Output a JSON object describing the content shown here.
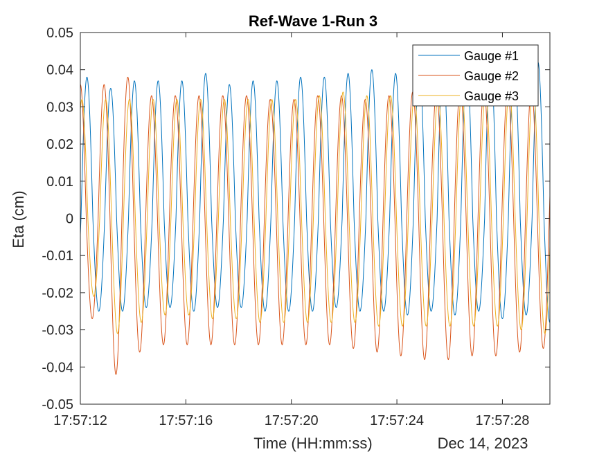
{
  "chart_data": {
    "type": "line",
    "title": "Ref-Wave 1-Run 3",
    "xlabel": "Time (HH:mm:ss)",
    "ylabel": "Eta (cm)",
    "date_label": "Dec 14, 2023",
    "x_start": "17:57:12",
    "x_end": "17:57:30",
    "x_unit": "s",
    "xlim": [
      0,
      17.8
    ],
    "ylim": [
      -0.05,
      0.05
    ],
    "x_ticks": [
      0,
      4,
      8,
      12,
      16
    ],
    "x_tick_labels": [
      "17:57:12",
      "17:57:16",
      "17:57:20",
      "17:57:24",
      "17:57:28"
    ],
    "y_ticks": [
      -0.05,
      -0.04,
      -0.03,
      -0.02,
      -0.01,
      0,
      0.01,
      0.02,
      0.03,
      0.04,
      0.05
    ],
    "y_tick_labels": [
      "-0.05",
      "-0.04",
      "-0.03",
      "-0.02",
      "-0.01",
      "0",
      "0.01",
      "0.02",
      "0.03",
      "0.04",
      "0.05"
    ],
    "grid": false,
    "legend_position": "top-right",
    "series": [
      {
        "name": "Gauge #1",
        "color": "#0072BD",
        "period": 0.9,
        "phase": 0.25,
        "peaks": [
          0.038,
          0.035,
          0.037,
          0.037,
          0.037,
          0.039,
          0.036,
          0.037,
          0.037,
          0.038,
          0.038,
          0.039,
          0.04,
          0.039,
          0.041,
          0.042,
          0.042,
          0.044,
          0.042,
          0.042,
          0.043,
          0.044,
          0.044,
          0.045,
          0.046,
          0.047
        ],
        "troughs": [
          -0.025,
          -0.025,
          -0.024,
          -0.024,
          -0.025,
          -0.024,
          -0.024,
          -0.025,
          -0.025,
          -0.025,
          -0.024,
          -0.025,
          -0.025,
          -0.026,
          -0.025,
          -0.026,
          -0.025,
          -0.027,
          -0.026,
          -0.028,
          -0.03,
          -0.031,
          -0.032,
          -0.033,
          -0.035
        ]
      },
      {
        "name": "Gauge #2",
        "color": "#D95319",
        "period": 0.9,
        "phase": 0.0,
        "peaks": [
          0.036,
          0.036,
          0.038,
          0.033,
          0.033,
          0.033,
          0.033,
          0.033,
          0.032,
          0.032,
          0.033,
          0.033,
          0.032,
          0.033,
          0.034,
          0.034,
          0.035,
          0.035,
          0.035,
          0.035,
          0.035,
          0.034,
          0.034,
          0.035,
          0.036,
          0.036,
          0.036
        ],
        "troughs": [
          -0.027,
          -0.042,
          -0.036,
          -0.034,
          -0.034,
          -0.034,
          -0.034,
          -0.034,
          -0.034,
          -0.034,
          -0.034,
          -0.035,
          -0.036,
          -0.037,
          -0.038,
          -0.038,
          -0.037,
          -0.037,
          -0.036,
          -0.035,
          -0.035,
          -0.034,
          -0.033,
          -0.033,
          -0.034,
          -0.041
        ]
      },
      {
        "name": "Gauge #3",
        "color": "#EDB120",
        "period": 0.9,
        "phase": 0.06,
        "peaks": [
          0.032,
          0.032,
          0.032,
          0.032,
          0.032,
          0.032,
          0.032,
          0.032,
          0.032,
          0.032,
          0.033,
          0.034,
          0.033,
          0.033,
          0.033,
          0.033,
          0.034,
          0.034,
          0.035,
          0.036,
          0.034,
          0.034,
          0.034,
          0.034,
          0.034,
          0.035,
          0.035
        ],
        "troughs": [
          -0.021,
          -0.031,
          -0.028,
          -0.026,
          -0.026,
          -0.027,
          -0.027,
          -0.028,
          -0.028,
          -0.028,
          -0.028,
          -0.028,
          -0.029,
          -0.029,
          -0.029,
          -0.029,
          -0.029,
          -0.029,
          -0.03,
          -0.031,
          -0.03,
          -0.032,
          -0.033,
          -0.033,
          -0.034,
          -0.039
        ]
      }
    ]
  }
}
